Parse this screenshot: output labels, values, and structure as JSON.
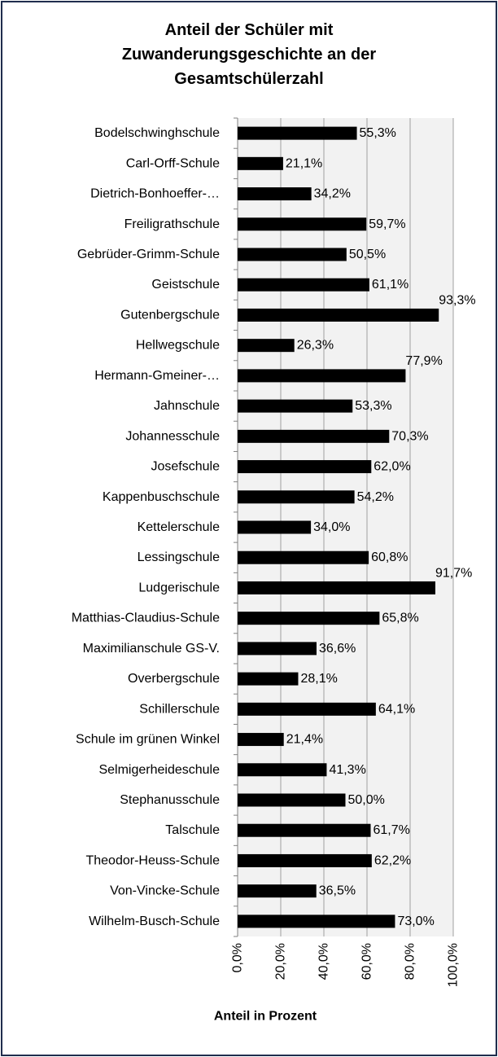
{
  "chart_data": {
    "type": "bar",
    "orientation": "horizontal",
    "title": "Anteil der Schüler mit Zuwanderungsgeschichte an der Gesamtschülerzahl",
    "x_label": "Anteil in Prozent",
    "categories": [
      "Bodelschwinghschule",
      "Carl-Orff-Schule",
      "Dietrich-Bonhoeffer-…",
      "Freiligrathschule",
      "Gebrüder-Grimm-Schule",
      "Geistschule",
      "Gutenbergschule",
      "Hellwegschule",
      "Hermann-Gmeiner-…",
      "Jahnschule",
      "Johannesschule",
      "Josefschule",
      "Kappenbuschschule",
      "Kettelerschule",
      "Lessingschule",
      "Ludgerischule",
      "Matthias-Claudius-Schule",
      "Maximilianschule GS-V.",
      "Overbergschule",
      "Schillerschule",
      "Schule im grünen Winkel",
      "Selmigerheideschule",
      "Stephanusschule",
      "Talschule",
      "Theodor-Heuss-Schule",
      "Von-Vincke-Schule",
      "Wilhelm-Busch-Schule"
    ],
    "values": [
      55.3,
      21.1,
      34.2,
      59.7,
      50.5,
      61.1,
      93.3,
      26.3,
      77.9,
      53.3,
      70.3,
      62.0,
      54.2,
      34.0,
      60.8,
      91.7,
      65.8,
      36.6,
      28.1,
      64.1,
      21.4,
      41.3,
      50.0,
      61.7,
      62.2,
      36.5,
      73.0
    ],
    "value_labels": [
      "55,3%",
      "21,1%",
      "34,2%",
      "59,7%",
      "50,5%",
      "61,1%",
      "93,3%",
      "26,3%",
      "77,9%",
      "53,3%",
      "70,3%",
      "62,0%",
      "54,2%",
      "34,0%",
      "60,8%",
      "91,7%",
      "65,8%",
      "36,6%",
      "28,1%",
      "64,1%",
      "21,4%",
      "41,3%",
      "50,0%",
      "61,7%",
      "62,2%",
      "36,5%",
      "73,0%"
    ],
    "color": "#000000",
    "xlim": [
      0,
      100
    ],
    "xticks": [
      {
        "value": 0,
        "label": "0,0%"
      },
      {
        "value": 20,
        "label": "20,0%"
      },
      {
        "value": 40,
        "label": "40,0%"
      },
      {
        "value": 60,
        "label": "60,0%"
      },
      {
        "value": 80,
        "label": "80,0%"
      },
      {
        "value": 100,
        "label": "100,0%"
      }
    ],
    "grid": true
  }
}
